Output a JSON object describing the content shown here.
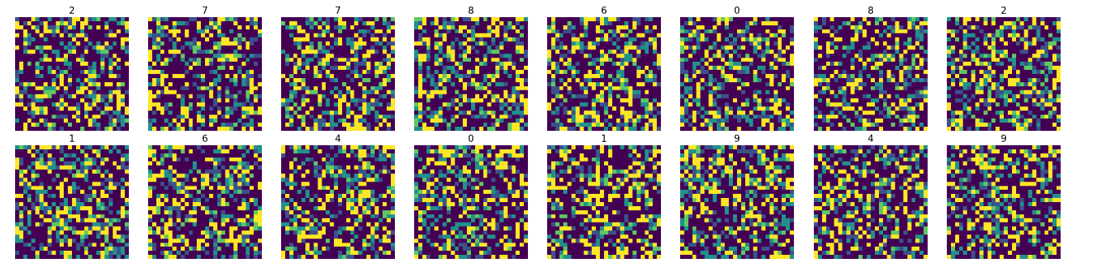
{
  "chart_data": {
    "type": "heatmap",
    "colormap": "viridis",
    "grid_rows": 2,
    "grid_cols": 8,
    "image_size": 28,
    "axes_visible": false,
    "panels": [
      {
        "title": "2",
        "seed": 1
      },
      {
        "title": "7",
        "seed": 2
      },
      {
        "title": "7",
        "seed": 3
      },
      {
        "title": "8",
        "seed": 4
      },
      {
        "title": "6",
        "seed": 5
      },
      {
        "title": "0",
        "seed": 6
      },
      {
        "title": "8",
        "seed": 7
      },
      {
        "title": "2",
        "seed": 8
      },
      {
        "title": "1",
        "seed": 9
      },
      {
        "title": "6",
        "seed": 10
      },
      {
        "title": "4",
        "seed": 11
      },
      {
        "title": "0",
        "seed": 12
      },
      {
        "title": "1",
        "seed": 13
      },
      {
        "title": "9",
        "seed": 14
      },
      {
        "title": "4",
        "seed": 15
      },
      {
        "title": "9",
        "seed": 16
      }
    ]
  }
}
